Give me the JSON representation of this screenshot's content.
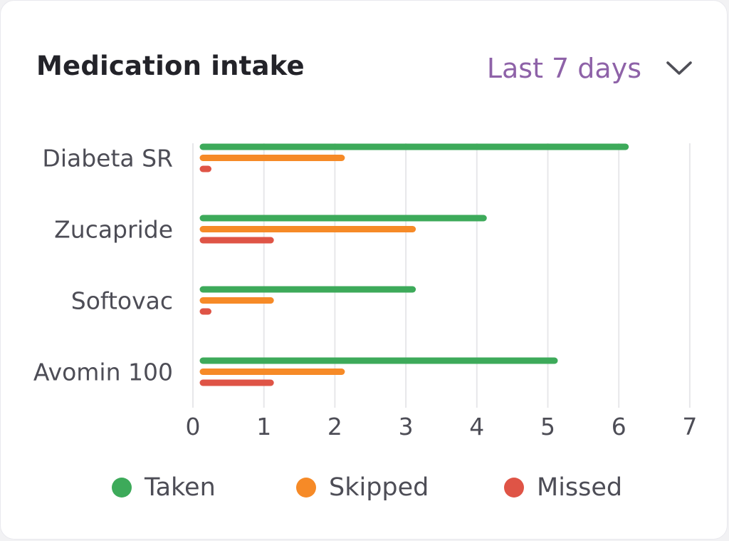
{
  "card": {
    "title": "Medication intake",
    "range_label": "Last 7 days"
  },
  "colors": {
    "taken": "#3daa5a",
    "skipped": "#f68a27",
    "missed": "#df5446",
    "gridline": "#e7e7ea",
    "accent": "#8e62a8"
  },
  "chart_data": {
    "type": "bar",
    "orientation": "horizontal",
    "title": "Medication intake",
    "categories": [
      "Diabeta SR",
      "Zucapride",
      "Softovac",
      "Avomin 100"
    ],
    "series": [
      {
        "name": "Taken",
        "values": [
          6,
          4,
          3,
          5
        ]
      },
      {
        "name": "Skipped",
        "values": [
          2,
          3,
          1,
          2
        ]
      },
      {
        "name": "Missed",
        "values": [
          0.1,
          1,
          0.1,
          1
        ]
      }
    ],
    "xlim": [
      0,
      7
    ],
    "xticks": [
      "0",
      "1",
      "2",
      "3",
      "4",
      "5",
      "6",
      "7"
    ],
    "xlabel": "",
    "ylabel": "",
    "grid": true,
    "legend_position": "bottom"
  },
  "legend": {
    "items": [
      {
        "label": "Taken",
        "icon": "green-dot-icon"
      },
      {
        "label": "Skipped",
        "icon": "orange-dot-icon"
      },
      {
        "label": "Missed",
        "icon": "red-dot-icon"
      }
    ]
  },
  "icons": {
    "range_toggle": "chevron-down-icon"
  }
}
